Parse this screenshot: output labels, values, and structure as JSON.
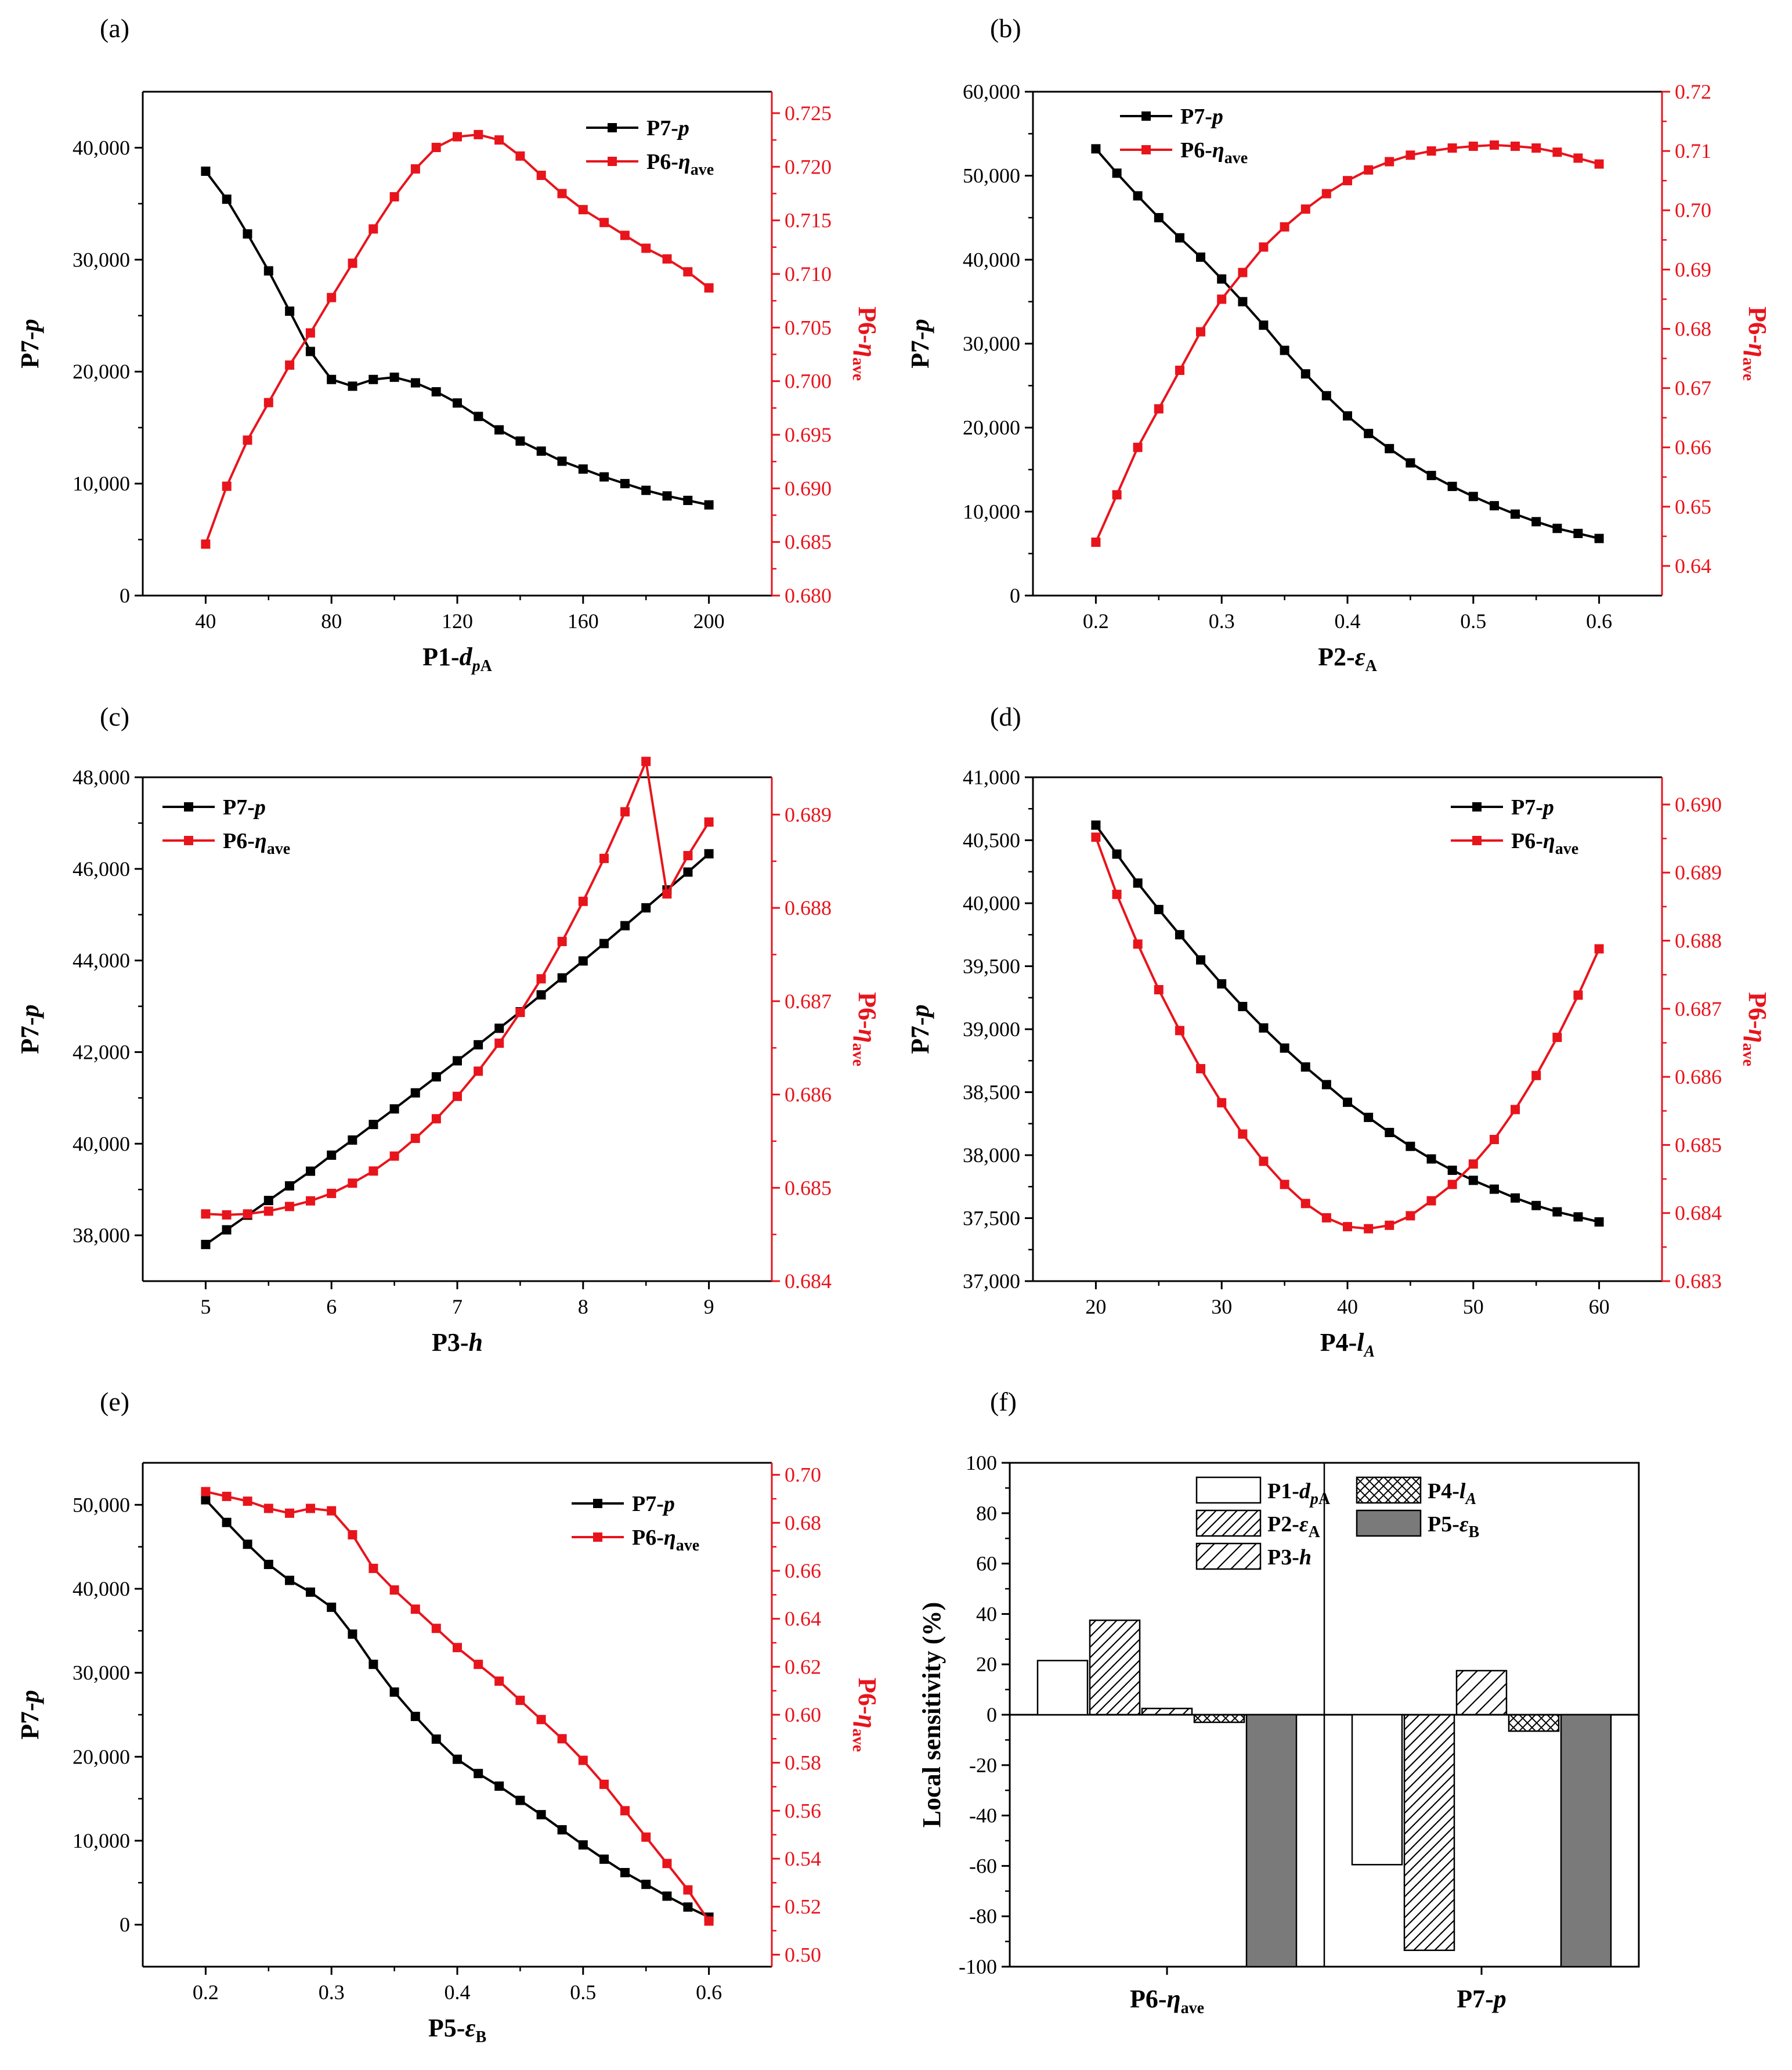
{
  "figure": {
    "panel_count": 6
  },
  "colors": {
    "black": "#000000",
    "red": "#e8141c",
    "bar_dark": "#7a7a7a"
  },
  "chart_data": [
    {
      "panel": "(a)",
      "type": "line",
      "xlabel": "P1-dpA",
      "ylabel_left": "P7-p",
      "ylabel_right": "P6-ηave",
      "xlim": [
        20,
        220
      ],
      "xticks": [
        40,
        80,
        120,
        160,
        200
      ],
      "xtick_labels": [
        "40",
        "80",
        "120",
        "160",
        "200"
      ],
      "ylim_left": [
        0,
        45000
      ],
      "yticks_left": [
        0,
        10000,
        20000,
        30000,
        40000
      ],
      "ytick_labels_left": [
        "0",
        "10,000",
        "20,000",
        "30,000",
        "40,000"
      ],
      "ylim_right": [
        0.68,
        0.727
      ],
      "yticks_right": [
        0.68,
        0.685,
        0.69,
        0.695,
        0.7,
        0.705,
        0.71,
        0.715,
        0.72,
        0.725
      ],
      "ytick_labels_right": [
        "0.680",
        "0.685",
        "0.690",
        "0.695",
        "0.700",
        "0.705",
        "0.710",
        "0.715",
        "0.720",
        "0.725"
      ],
      "legend": {
        "position": "top-right",
        "entries": [
          "P7-p",
          "P6-ηave"
        ]
      },
      "x": [
        40,
        46.7,
        53.3,
        60,
        66.7,
        73.3,
        80,
        86.7,
        93.3,
        100,
        106.7,
        113.3,
        120,
        126.7,
        133.3,
        140,
        146.7,
        153.3,
        160,
        166.7,
        173.3,
        180,
        186.7,
        193.3,
        200
      ],
      "series": [
        {
          "name": "P7-p",
          "axis": "left",
          "values": [
            37900,
            35400,
            32300,
            29000,
            25400,
            21800,
            19300,
            18700,
            19300,
            19500,
            19000,
            18200,
            17200,
            16000,
            14800,
            13800,
            12900,
            12000,
            11300,
            10600,
            10000,
            9400,
            8900,
            8500,
            8100
          ]
        },
        {
          "name": "P6-ηave",
          "axis": "right",
          "values": [
            0.6848,
            0.6902,
            0.6945,
            0.698,
            0.7015,
            0.7045,
            0.7078,
            0.711,
            0.7142,
            0.7172,
            0.7198,
            0.7218,
            0.7228,
            0.723,
            0.7225,
            0.721,
            0.7192,
            0.7175,
            0.716,
            0.7148,
            0.7136,
            0.7124,
            0.7114,
            0.7102,
            0.7087
          ]
        }
      ]
    },
    {
      "panel": "(b)",
      "type": "line",
      "xlabel": "P2-εA",
      "ylabel_left": "P7-p",
      "ylabel_right": "P6-ηave",
      "xlim": [
        0.15,
        0.65
      ],
      "xticks": [
        0.2,
        0.3,
        0.4,
        0.5,
        0.6
      ],
      "xtick_labels": [
        "0.2",
        "0.3",
        "0.4",
        "0.5",
        "0.6"
      ],
      "ylim_left": [
        0,
        60000
      ],
      "yticks_left": [
        0,
        10000,
        20000,
        30000,
        40000,
        50000,
        60000
      ],
      "ytick_labels_left": [
        "0",
        "10,000",
        "20,000",
        "30,000",
        "40,000",
        "50,000",
        "60,000"
      ],
      "ylim_right": [
        0.635,
        0.72
      ],
      "yticks_right": [
        0.64,
        0.65,
        0.66,
        0.67,
        0.68,
        0.69,
        0.7,
        0.71,
        0.72
      ],
      "ytick_labels_right": [
        "0.64",
        "0.65",
        "0.66",
        "0.67",
        "0.68",
        "0.69",
        "0.70",
        "0.71",
        "0.72"
      ],
      "legend": {
        "position": "top-center",
        "entries": [
          "P7-p",
          "P6-ηave"
        ]
      },
      "x": [
        0.2,
        0.2167,
        0.2333,
        0.25,
        0.2667,
        0.2833,
        0.3,
        0.3167,
        0.3333,
        0.35,
        0.3667,
        0.3833,
        0.4,
        0.4167,
        0.4333,
        0.45,
        0.4667,
        0.4833,
        0.5,
        0.5167,
        0.5333,
        0.55,
        0.5667,
        0.5833,
        0.6
      ],
      "series": [
        {
          "name": "P7-p",
          "axis": "left",
          "values": [
            53200,
            50300,
            47600,
            45000,
            42600,
            40300,
            37700,
            35000,
            32200,
            29200,
            26400,
            23800,
            21400,
            19300,
            17500,
            15800,
            14300,
            13000,
            11800,
            10700,
            9700,
            8800,
            8000,
            7400,
            6800
          ]
        },
        {
          "name": "P6-ηave",
          "axis": "right",
          "values": [
            0.644,
            0.652,
            0.66,
            0.6665,
            0.673,
            0.6795,
            0.685,
            0.6895,
            0.6938,
            0.6972,
            0.7002,
            0.7028,
            0.705,
            0.7068,
            0.7082,
            0.7093,
            0.71,
            0.7105,
            0.7108,
            0.711,
            0.7108,
            0.7105,
            0.7098,
            0.7088,
            0.7078
          ]
        }
      ]
    },
    {
      "panel": "(c)",
      "type": "line",
      "xlabel": "P3-h",
      "ylabel_left": "P7-p",
      "ylabel_right": "P6-ηave",
      "xlim": [
        4.5,
        9.5
      ],
      "xticks": [
        5,
        6,
        7,
        8,
        9
      ],
      "xtick_labels": [
        "5",
        "6",
        "7",
        "8",
        "9"
      ],
      "ylim_left": [
        37000,
        48000
      ],
      "yticks_left": [
        38000,
        40000,
        42000,
        44000,
        46000,
        48000
      ],
      "ytick_labels_left": [
        "38,000",
        "40,000",
        "42,000",
        "44,000",
        "46,000",
        "48,000"
      ],
      "ylim_right": [
        0.684,
        0.6894
      ],
      "yticks_right": [
        0.684,
        0.685,
        0.686,
        0.687,
        0.688,
        0.689
      ],
      "ytick_labels_right": [
        "0.684",
        "0.685",
        "0.686",
        "0.687",
        "0.688",
        "0.689"
      ],
      "legend": {
        "position": "top-left",
        "entries": [
          "P7-p",
          "P6-ηave"
        ]
      },
      "x": [
        5,
        5.1667,
        5.3333,
        5.5,
        5.6667,
        5.8333,
        6,
        6.1667,
        6.3333,
        6.5,
        6.6667,
        6.8333,
        7,
        7.1667,
        7.3333,
        7.5,
        7.6667,
        7.8333,
        8,
        8.1667,
        8.3333,
        8.5,
        8.6667,
        8.8333,
        9
      ],
      "series": [
        {
          "name": "P7-p",
          "axis": "left",
          "values": [
            37800,
            38120,
            38440,
            38760,
            39080,
            39400,
            39750,
            40080,
            40420,
            40760,
            41110,
            41460,
            41810,
            42160,
            42520,
            42880,
            43250,
            43620,
            43990,
            44370,
            44760,
            45150,
            45540,
            45930,
            46330
          ]
        },
        {
          "name": "P6-ηave",
          "axis": "right",
          "values": [
            0.68472,
            0.68471,
            0.68472,
            0.68475,
            0.6848,
            0.68486,
            0.68494,
            0.68505,
            0.68518,
            0.68534,
            0.68553,
            0.68574,
            0.68598,
            0.68625,
            0.68655,
            0.68688,
            0.68724,
            0.68764,
            0.68807,
            0.68853,
            0.68903,
            0.68957,
            0.68815,
            0.68856,
            0.68892
          ]
        }
      ]
    },
    {
      "panel": "(d)",
      "type": "line",
      "xlabel": "P4-lA",
      "ylabel_left": "P7-p",
      "ylabel_right": "P6-ηave",
      "xlim": [
        15,
        65
      ],
      "xticks": [
        20,
        30,
        40,
        50,
        60
      ],
      "xtick_labels": [
        "20",
        "30",
        "40",
        "50",
        "60"
      ],
      "ylim_left": [
        37000,
        41000
      ],
      "yticks_left": [
        37000,
        37500,
        38000,
        38500,
        39000,
        39500,
        40000,
        40500,
        41000
      ],
      "ytick_labels_left": [
        "37,000",
        "37,500",
        "38,000",
        "38,500",
        "39,000",
        "39,500",
        "40,000",
        "40,500",
        "41,000"
      ],
      "ylim_right": [
        0.683,
        0.6904
      ],
      "yticks_right": [
        0.683,
        0.684,
        0.685,
        0.686,
        0.687,
        0.688,
        0.689,
        0.69
      ],
      "ytick_labels_right": [
        "0.683",
        "0.684",
        "0.685",
        "0.686",
        "0.687",
        "0.688",
        "0.689",
        "0.690"
      ],
      "legend": {
        "position": "top-right",
        "entries": [
          "P7-p",
          "P6-ηave"
        ]
      },
      "x": [
        20,
        21.667,
        23.333,
        25,
        26.667,
        28.333,
        30,
        31.667,
        33.333,
        35,
        36.667,
        38.333,
        40,
        41.667,
        43.333,
        45,
        46.667,
        48.333,
        50,
        51.667,
        53.333,
        55,
        56.667,
        58.333,
        60
      ],
      "series": [
        {
          "name": "P7-p",
          "axis": "left",
          "values": [
            40620,
            40390,
            40160,
            39950,
            39750,
            39550,
            39360,
            39180,
            39010,
            38850,
            38700,
            38560,
            38420,
            38300,
            38180,
            38070,
            37970,
            37880,
            37800,
            37730,
            37660,
            37600,
            37550,
            37510,
            37470
          ]
        },
        {
          "name": "P6-ηave",
          "axis": "right",
          "values": [
            0.68952,
            0.68868,
            0.68795,
            0.68728,
            0.68668,
            0.68612,
            0.68562,
            0.68516,
            0.68476,
            0.68442,
            0.68414,
            0.68393,
            0.6838,
            0.68377,
            0.68382,
            0.68396,
            0.68418,
            0.68442,
            0.68472,
            0.68508,
            0.68552,
            0.68602,
            0.68658,
            0.6872,
            0.68788
          ]
        }
      ]
    },
    {
      "panel": "(e)",
      "type": "line",
      "xlabel": "P5-εB",
      "ylabel_left": "P7-p",
      "ylabel_right": "P6-ηave",
      "xlim": [
        0.15,
        0.65
      ],
      "xticks": [
        0.2,
        0.3,
        0.4,
        0.5,
        0.6
      ],
      "xtick_labels": [
        "0.2",
        "0.3",
        "0.4",
        "0.5",
        "0.6"
      ],
      "ylim_left": [
        -5000,
        55000
      ],
      "yticks_left": [
        0,
        10000,
        20000,
        30000,
        40000,
        50000
      ],
      "ytick_labels_left": [
        "0",
        "10,000",
        "20,000",
        "30,000",
        "40,000",
        "50,000"
      ],
      "ylim_right": [
        0.495,
        0.705
      ],
      "yticks_right": [
        0.5,
        0.52,
        0.54,
        0.56,
        0.58,
        0.6,
        0.62,
        0.64,
        0.66,
        0.68,
        0.7
      ],
      "ytick_labels_right": [
        "0.50",
        "0.52",
        "0.54",
        "0.56",
        "0.58",
        "0.60",
        "0.62",
        "0.64",
        "0.66",
        "0.68",
        "0.70"
      ],
      "legend": {
        "position": "top-right",
        "entries": [
          "P7-p",
          "P6-ηave"
        ]
      },
      "x": [
        0.2,
        0.2167,
        0.2333,
        0.25,
        0.2667,
        0.2833,
        0.3,
        0.3167,
        0.3333,
        0.35,
        0.3667,
        0.3833,
        0.4,
        0.4167,
        0.4333,
        0.45,
        0.4667,
        0.4833,
        0.5,
        0.5167,
        0.5333,
        0.55,
        0.5667,
        0.5833,
        0.6
      ],
      "series": [
        {
          "name": "P7-p",
          "axis": "left",
          "values": [
            50600,
            47900,
            45300,
            42900,
            41000,
            39600,
            37800,
            34600,
            31000,
            27700,
            24800,
            22100,
            19700,
            18000,
            16500,
            14800,
            13100,
            11300,
            9500,
            7800,
            6200,
            4800,
            3400,
            2100,
            900
          ]
        },
        {
          "name": "P6-ηave",
          "axis": "right",
          "values": [
            0.693,
            0.691,
            0.689,
            0.686,
            0.684,
            0.686,
            0.685,
            0.675,
            0.661,
            0.652,
            0.644,
            0.636,
            0.628,
            0.621,
            0.614,
            0.606,
            0.598,
            0.59,
            0.581,
            0.571,
            0.56,
            0.549,
            0.538,
            0.527,
            0.514
          ]
        }
      ]
    },
    {
      "panel": "(f)",
      "type": "bar",
      "ylabel": "Local sensitivity (%)",
      "ylim": [
        -100,
        100
      ],
      "yticks": [
        -100,
        -80,
        -60,
        -40,
        -20,
        0,
        20,
        40,
        60,
        80,
        100
      ],
      "ytick_labels": [
        "-100",
        "-80",
        "-60",
        "-40",
        "-20",
        "0",
        "20",
        "40",
        "60",
        "80",
        "100"
      ],
      "categories": [
        "P6-ηave",
        "P7-p"
      ],
      "legend": {
        "position": "top",
        "entries": [
          "P1-dpA",
          "P2-εA",
          "P3-h",
          "P4-lA",
          "P5-εB"
        ]
      },
      "series": [
        {
          "name": "P1-dpA",
          "pattern": "empty",
          "values": [
            21.5,
            -59.5
          ]
        },
        {
          "name": "P2-εA",
          "pattern": "hatch-forward",
          "values": [
            37.5,
            -93.5
          ]
        },
        {
          "name": "P3-h",
          "pattern": "hatch-forward-sparse",
          "values": [
            2.5,
            17.5
          ]
        },
        {
          "name": "P4-lA",
          "pattern": "crosshatch",
          "values": [
            -3,
            -6.5
          ]
        },
        {
          "name": "P5-εB",
          "pattern": "solid-gray",
          "values": [
            -100,
            -100
          ]
        }
      ]
    }
  ]
}
